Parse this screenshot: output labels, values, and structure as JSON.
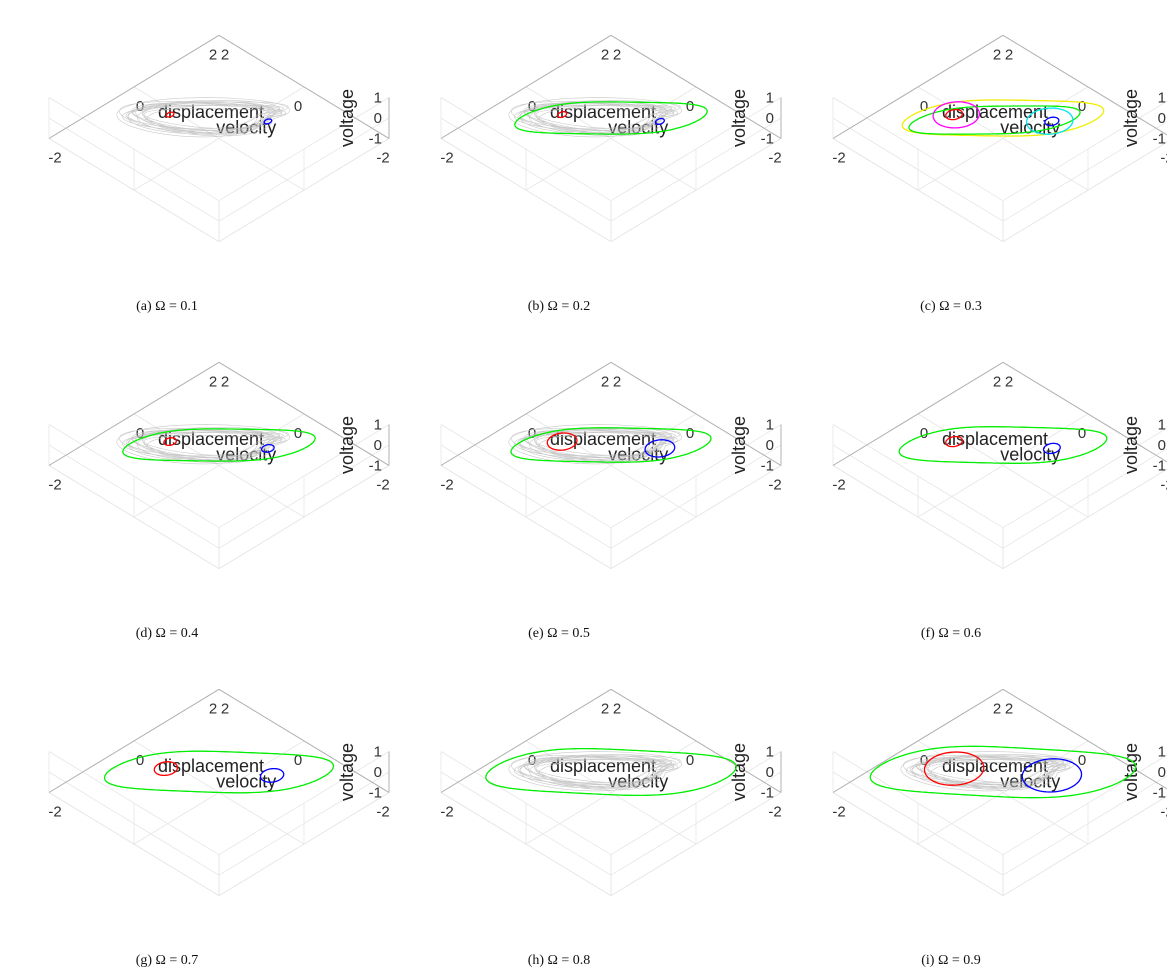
{
  "axis_labels": {
    "x": "displacement",
    "y": "velocity",
    "z": "voltage"
  },
  "ticks": {
    "x": [
      "-2",
      "0",
      "2"
    ],
    "y": [
      "-2",
      "0",
      "2"
    ],
    "z": [
      "-1",
      "0",
      "1"
    ]
  },
  "panels": [
    {
      "caption": "(a) Ω = 0.1"
    },
    {
      "caption": "(b) Ω = 0.2"
    },
    {
      "caption": "(c) Ω = 0.3"
    },
    {
      "caption": "(d) Ω = 0.4"
    },
    {
      "caption": "(e) Ω = 0.5"
    },
    {
      "caption": "(f) Ω = 0.6"
    },
    {
      "caption": "(g) Ω = 0.7"
    },
    {
      "caption": "(h) Ω = 0.8"
    },
    {
      "caption": "(i) Ω = 0.9"
    }
  ],
  "chart_data": [
    {
      "type": "line",
      "title": "(a) Ω = 0.1",
      "xlabel": "displacement",
      "ylabel": "velocity",
      "zlabel": "voltage",
      "xlim": [
        -2,
        2
      ],
      "ylim": [
        -2,
        2
      ],
      "zlim": [
        -1,
        1
      ],
      "grid": true,
      "series": [
        {
          "color": "#bdbdbd",
          "kind": "chaotic",
          "xc": 0,
          "yc": 0,
          "zc": 0,
          "rx": 1.25,
          "ry": 0.85
        },
        {
          "color": "#0000ff",
          "kind": "orbit",
          "xc": -0.8,
          "yc": 0.35,
          "zc": 0.4,
          "rx": 0.05,
          "ry": 0.06
        },
        {
          "color": "#ff0000",
          "kind": "orbit",
          "xc": 0.8,
          "yc": -0.35,
          "zc": -0.4,
          "rx": 0.05,
          "ry": 0.06
        }
      ]
    },
    {
      "type": "line",
      "title": "(b) Ω = 0.2",
      "xlabel": "displacement",
      "ylabel": "velocity",
      "zlabel": "voltage",
      "xlim": [
        -2,
        2
      ],
      "ylim": [
        -2,
        2
      ],
      "zlim": [
        -1,
        1
      ],
      "grid": true,
      "series": [
        {
          "color": "#bdbdbd",
          "kind": "chaotic",
          "xc": 0,
          "yc": 0,
          "zc": 0,
          "rx": 1.25,
          "ry": 0.85
        },
        {
          "color": "#00ee00",
          "kind": "outer",
          "xc": 0,
          "yc": 0,
          "zc": 0,
          "rx": 1.35,
          "ry": 0.9
        },
        {
          "color": "#0000ff",
          "kind": "orbit",
          "xc": -0.8,
          "yc": 0.35,
          "zc": 0.4,
          "rx": 0.06,
          "ry": 0.07
        },
        {
          "color": "#ff0000",
          "kind": "orbit",
          "xc": 0.8,
          "yc": -0.35,
          "zc": -0.4,
          "rx": 0.06,
          "ry": 0.07
        }
      ]
    },
    {
      "type": "line",
      "title": "(c) Ω = 0.3",
      "xlabel": "displacement",
      "ylabel": "velocity",
      "zlabel": "voltage",
      "xlim": [
        -2,
        2
      ],
      "ylim": [
        -2,
        2
      ],
      "zlim": [
        -1,
        1
      ],
      "grid": true,
      "series": [
        {
          "color": "#eeee00",
          "kind": "outer",
          "xc": 0,
          "yc": 0,
          "zc": 0,
          "rx": 1.4,
          "ry": 1.0
        },
        {
          "color": "#00ee00",
          "kind": "outer",
          "xc": 0.1,
          "yc": -0.1,
          "zc": -0.1,
          "rx": 1.2,
          "ry": 0.8
        },
        {
          "color": "#00e5ee",
          "kind": "orbit",
          "xc": -0.75,
          "yc": 0.35,
          "zc": 0.35,
          "rx": 0.35,
          "ry": 0.3
        },
        {
          "color": "#ff00ff",
          "kind": "orbit",
          "xc": 0.75,
          "yc": -0.35,
          "zc": -0.35,
          "rx": 0.35,
          "ry": 0.3
        },
        {
          "color": "#0000ff",
          "kind": "orbit",
          "xc": -0.8,
          "yc": 0.35,
          "zc": 0.4,
          "rx": 0.1,
          "ry": 0.1
        },
        {
          "color": "#ff0000",
          "kind": "orbit",
          "xc": 0.8,
          "yc": -0.35,
          "zc": -0.4,
          "rx": 0.12,
          "ry": 0.12
        }
      ]
    },
    {
      "type": "line",
      "title": "(d) Ω = 0.4",
      "xlabel": "displacement",
      "ylabel": "velocity",
      "zlabel": "voltage",
      "xlim": [
        -2,
        2
      ],
      "ylim": [
        -2,
        2
      ],
      "zlim": [
        -1,
        1
      ],
      "grid": true,
      "series": [
        {
          "color": "#bdbdbd",
          "kind": "chaotic",
          "xc": 0,
          "yc": 0,
          "zc": 0,
          "rx": 1.25,
          "ry": 0.85
        },
        {
          "color": "#00ee00",
          "kind": "outer",
          "xc": 0,
          "yc": 0,
          "zc": 0,
          "rx": 1.35,
          "ry": 0.9
        },
        {
          "color": "#0000ff",
          "kind": "orbit",
          "xc": -0.8,
          "yc": 0.35,
          "zc": 0.4,
          "rx": 0.09,
          "ry": 0.09
        },
        {
          "color": "#ff0000",
          "kind": "orbit",
          "xc": 0.8,
          "yc": -0.35,
          "zc": -0.4,
          "rx": 0.09,
          "ry": 0.09
        }
      ]
    },
    {
      "type": "line",
      "title": "(e) Ω = 0.5",
      "xlabel": "displacement",
      "ylabel": "velocity",
      "zlabel": "voltage",
      "xlim": [
        -2,
        2
      ],
      "ylim": [
        -2,
        2
      ],
      "zlim": [
        -1,
        1
      ],
      "grid": true,
      "series": [
        {
          "color": "#bdbdbd",
          "kind": "chaotic",
          "xc": 0,
          "yc": 0,
          "zc": 0,
          "rx": 1.25,
          "ry": 0.85
        },
        {
          "color": "#00ee00",
          "kind": "outer",
          "xc": 0,
          "yc": 0,
          "zc": 0,
          "rx": 1.4,
          "ry": 0.95
        },
        {
          "color": "#0000ff",
          "kind": "orbit",
          "xc": -0.8,
          "yc": 0.35,
          "zc": 0.4,
          "rx": 0.22,
          "ry": 0.2
        },
        {
          "color": "#ff0000",
          "kind": "orbit",
          "xc": 0.8,
          "yc": -0.35,
          "zc": -0.4,
          "rx": 0.22,
          "ry": 0.2
        }
      ]
    },
    {
      "type": "line",
      "title": "(f) Ω = 0.6",
      "xlabel": "displacement",
      "ylabel": "velocity",
      "zlabel": "voltage",
      "xlim": [
        -2,
        2
      ],
      "ylim": [
        -2,
        2
      ],
      "zlim": [
        -1,
        1
      ],
      "grid": true,
      "series": [
        {
          "color": "#00ee00",
          "kind": "outer",
          "xc": 0,
          "yc": 0,
          "zc": 0,
          "rx": 1.45,
          "ry": 1.0
        },
        {
          "color": "#0000ff",
          "kind": "orbit",
          "xc": -0.8,
          "yc": 0.35,
          "zc": 0.4,
          "rx": 0.12,
          "ry": 0.12
        },
        {
          "color": "#ff0000",
          "kind": "orbit",
          "xc": 0.8,
          "yc": -0.35,
          "zc": -0.4,
          "rx": 0.12,
          "ry": 0.12
        }
      ]
    },
    {
      "type": "line",
      "title": "(g) Ω = 0.7",
      "xlabel": "displacement",
      "ylabel": "velocity",
      "zlabel": "voltage",
      "xlim": [
        -2,
        2
      ],
      "ylim": [
        -2,
        2
      ],
      "zlim": [
        -1,
        1
      ],
      "grid": true,
      "series": [
        {
          "color": "#00ee00",
          "kind": "outer",
          "xc": 0,
          "yc": 0,
          "zc": 0,
          "rx": 1.6,
          "ry": 1.1
        },
        {
          "color": "#0000ff",
          "kind": "orbit",
          "xc": -0.85,
          "yc": 0.4,
          "zc": 0.4,
          "rx": 0.17,
          "ry": 0.16
        },
        {
          "color": "#ff0000",
          "kind": "orbit",
          "xc": 0.85,
          "yc": -0.4,
          "zc": -0.4,
          "rx": 0.17,
          "ry": 0.16
        }
      ]
    },
    {
      "type": "line",
      "title": "(h) Ω = 0.8",
      "xlabel": "displacement",
      "ylabel": "velocity",
      "zlabel": "voltage",
      "xlim": [
        -2,
        2
      ],
      "ylim": [
        -2,
        2
      ],
      "zlim": [
        -1,
        1
      ],
      "grid": true,
      "series": [
        {
          "color": "#bdbdbd",
          "kind": "chaotic",
          "xc": 0,
          "yc": 0,
          "zc": 0,
          "rx": 1.25,
          "ry": 0.85
        },
        {
          "color": "#00ee00",
          "kind": "outer",
          "xc": 0,
          "yc": 0,
          "zc": 0,
          "rx": 1.75,
          "ry": 1.2
        }
      ]
    },
    {
      "type": "line",
      "title": "(i) Ω = 0.9",
      "xlabel": "displacement",
      "ylabel": "velocity",
      "zlabel": "voltage",
      "xlim": [
        -2,
        2
      ],
      "ylim": [
        -2,
        2
      ],
      "zlim": [
        -1,
        1
      ],
      "grid": true,
      "series": [
        {
          "color": "#bdbdbd",
          "kind": "chaotic",
          "xc": 0,
          "yc": 0,
          "zc": 0,
          "rx": 1.25,
          "ry": 0.85
        },
        {
          "color": "#00ee00",
          "kind": "outer",
          "xc": 0,
          "yc": 0,
          "zc": 0,
          "rx": 1.85,
          "ry": 1.3
        },
        {
          "color": "#0000ff",
          "kind": "orbit",
          "xc": -0.8,
          "yc": 0.35,
          "zc": 0.4,
          "rx": 0.45,
          "ry": 0.38
        },
        {
          "color": "#ff0000",
          "kind": "orbit",
          "xc": 0.8,
          "yc": -0.35,
          "zc": -0.4,
          "rx": 0.45,
          "ry": 0.38
        }
      ]
    }
  ]
}
